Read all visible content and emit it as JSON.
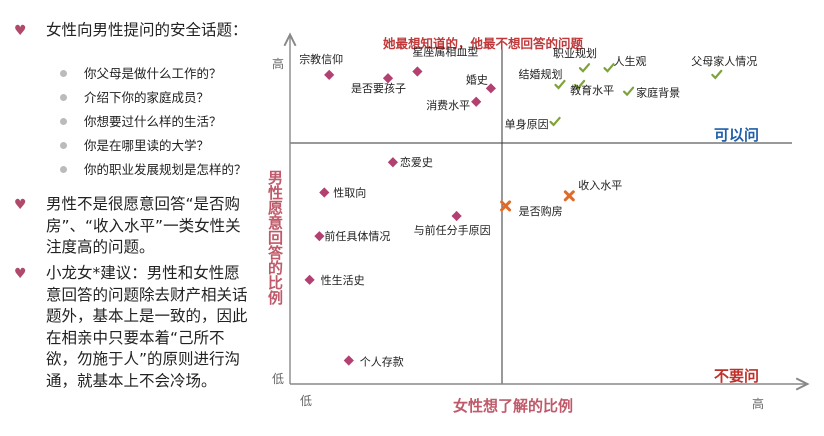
{
  "left_panel": {
    "bullet1": "女性向男性提问的安全话题：",
    "questions": [
      "你父母是做什么工作的？",
      "介绍下你的家庭成员？",
      "你想要过什么样的生活？",
      "你是在哪里读的大学？",
      "你的职业发展规划是怎样的？"
    ],
    "bullet2": "男性不是很愿意回答“是否购房”、“收入水平”一类女性关注度高的问题。",
    "bullet3": "小龙女*建议：男性和女性愿意回答的问题除去财产相关话题外，基本上是一致的，因此在相亲中只要本着“己所不欲，勿施于人”的原则进行沟通，就基本上不会冷场。"
  },
  "colors": {
    "title_red": "#c0393b",
    "axis_label": "#c05a6a",
    "diamond": "#b24070",
    "check": "#7ea33a",
    "cross": "#e06a2a",
    "ok_blue": "#1f5fa8",
    "no_red": "#c0302a"
  },
  "chart_data": {
    "type": "scatter",
    "title": "她最想知道的，他最不想回答的问题",
    "xlabel": "女性想了解的比例",
    "ylabel": "男性愿意回答的比例",
    "x_low": "低",
    "x_high": "高",
    "y_low": "低",
    "y_high": "高",
    "xlim": [
      0,
      100
    ],
    "ylim": [
      0,
      100
    ],
    "quadrant_ok_label": "可以问",
    "quadrant_no_label": "不要问",
    "series": [
      {
        "name": "diamond",
        "points": [
          {
            "label": "宗教信仰",
            "x": 8,
            "y": 92
          },
          {
            "label": "星座属相血型",
            "x": 26,
            "y": 93
          },
          {
            "label": "是否要孩子",
            "x": 20,
            "y": 91
          },
          {
            "label": "婚史",
            "x": 41,
            "y": 88
          },
          {
            "label": "消费水平",
            "x": 38,
            "y": 84
          },
          {
            "label": "恋爱史",
            "x": 21,
            "y": 66
          },
          {
            "label": "性取向",
            "x": 7,
            "y": 57
          },
          {
            "label": "与前任分手原因",
            "x": 34,
            "y": 50
          },
          {
            "label": "前任具体情况",
            "x": 6,
            "y": 44
          },
          {
            "label": "性生活史",
            "x": 4,
            "y": 31
          },
          {
            "label": "个人存款",
            "x": 12,
            "y": 7
          }
        ]
      },
      {
        "name": "check",
        "points": [
          {
            "label": "职业规划",
            "x": 60,
            "y": 94
          },
          {
            "label": "人生观",
            "x": 65,
            "y": 94
          },
          {
            "label": "父母家人情况",
            "x": 87,
            "y": 92
          },
          {
            "label": "结婚规划",
            "x": 55,
            "y": 89
          },
          {
            "label": "教育水平",
            "x": 59,
            "y": 89
          },
          {
            "label": "家庭背景",
            "x": 69,
            "y": 87
          },
          {
            "label": "单身原因",
            "x": 54,
            "y": 78
          }
        ]
      },
      {
        "name": "cross",
        "points": [
          {
            "label": "收入水平",
            "x": 57,
            "y": 56
          },
          {
            "label": "是否购房",
            "x": 44,
            "y": 53
          }
        ]
      }
    ]
  }
}
